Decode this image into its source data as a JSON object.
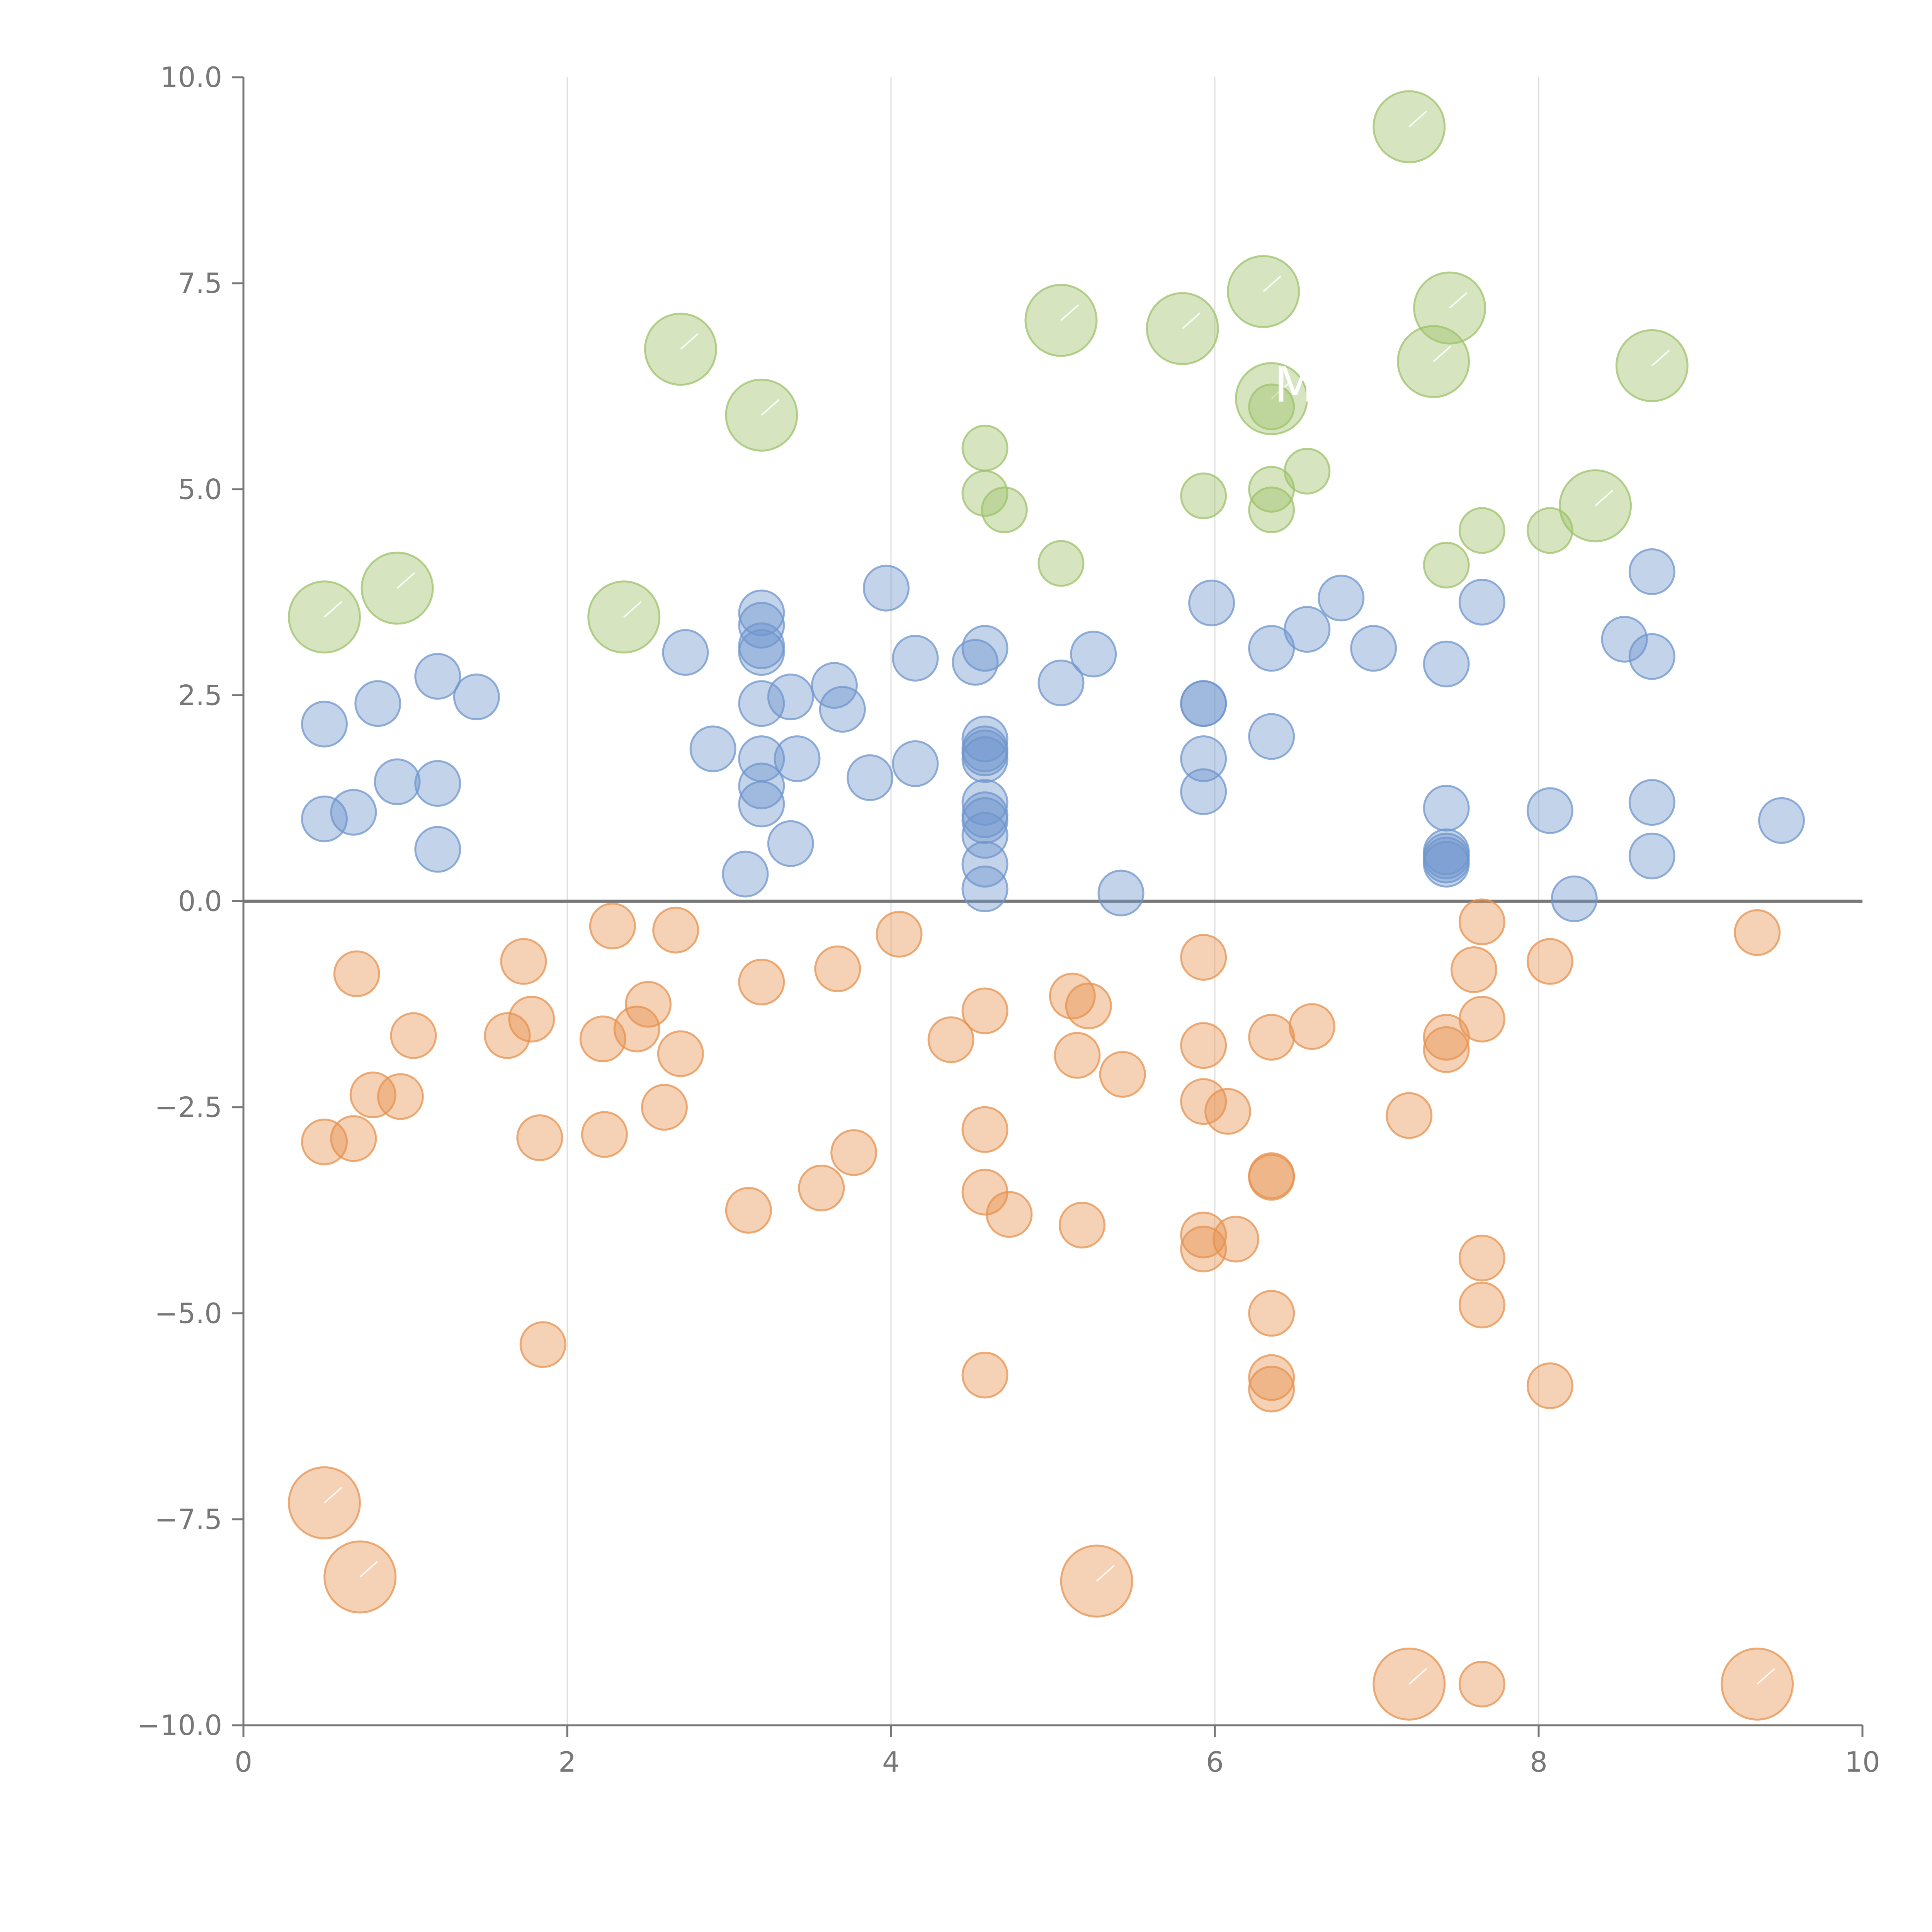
{
  "chart_data": {
    "type": "scatter",
    "title": "",
    "xlabel": "",
    "ylabel": "",
    "xlim": [
      0,
      10
    ],
    "ylim": [
      -10,
      10
    ],
    "x_ticks": [
      0,
      2,
      4,
      6,
      8,
      10
    ],
    "x_tick_labels": [
      "0",
      "2",
      "4",
      "6",
      "8",
      "10"
    ],
    "y_ticks": [
      10,
      7.5,
      5,
      2.5,
      0,
      -2.5,
      -5,
      -7.5,
      -10
    ],
    "y_tick_labels": [
      "10.0",
      "7.5",
      "5.0",
      "2.5",
      "0.0",
      "−2.5",
      "−5.0",
      "−7.5",
      "−10.0"
    ],
    "grid": "vertical",
    "zero_line": true,
    "colors": {
      "green": "#9dc26a",
      "blue": "#6f95cc",
      "orange": "#e6924f",
      "axis": "#777777",
      "grid": "#dddddd",
      "zero": "#777777"
    },
    "series": [
      {
        "name": "green",
        "color": "#9dc26a",
        "points": [
          [
            0.5,
            3.45,
            3
          ],
          [
            0.95,
            3.8,
            3
          ],
          [
            2.35,
            3.45,
            3
          ],
          [
            2.7,
            6.7,
            3
          ],
          [
            3.2,
            5.9,
            3
          ],
          [
            5.05,
            7.05,
            3
          ],
          [
            5.8,
            6.95,
            3
          ],
          [
            6.3,
            7.4,
            3
          ],
          [
            6.35,
            6.1,
            3
          ],
          [
            7.2,
            9.4,
            3
          ],
          [
            7.35,
            6.55,
            3
          ],
          [
            7.45,
            7.2,
            3
          ],
          [
            8.35,
            4.8,
            3
          ],
          [
            8.7,
            6.5,
            3
          ],
          [
            4.58,
            5.5,
            1
          ],
          [
            4.58,
            4.95,
            1
          ],
          [
            4.7,
            4.75,
            1
          ],
          [
            5.05,
            4.1,
            1
          ],
          [
            5.93,
            4.92,
            1
          ],
          [
            6.35,
            6.0,
            1
          ],
          [
            6.35,
            5.0,
            1
          ],
          [
            6.35,
            4.75,
            1
          ],
          [
            6.57,
            5.22,
            1
          ],
          [
            7.43,
            4.08,
            1
          ],
          [
            7.65,
            4.5,
            1
          ],
          [
            8.07,
            4.5,
            1
          ]
        ]
      },
      {
        "name": "blue",
        "color": "#6f95cc",
        "points": [
          [
            0.5,
            2.15,
            1
          ],
          [
            0.83,
            2.4,
            1
          ],
          [
            0.5,
            1.0,
            1
          ],
          [
            0.68,
            1.08,
            1
          ],
          [
            0.95,
            1.45,
            1
          ],
          [
            1.2,
            2.73,
            1
          ],
          [
            1.44,
            2.48,
            1
          ],
          [
            1.2,
            1.43,
            1
          ],
          [
            1.2,
            0.63,
            1
          ],
          [
            2.73,
            3.02,
            1
          ],
          [
            2.9,
            1.85,
            1
          ],
          [
            3.1,
            0.33,
            1
          ],
          [
            3.2,
            3.5,
            1
          ],
          [
            3.2,
            3.35,
            1
          ],
          [
            3.2,
            3.1,
            1
          ],
          [
            3.2,
            3.02,
            1
          ],
          [
            3.2,
            2.4,
            1
          ],
          [
            3.2,
            1.73,
            1
          ],
          [
            3.2,
            1.4,
            1
          ],
          [
            3.2,
            1.18,
            1
          ],
          [
            3.38,
            2.48,
            1
          ],
          [
            3.42,
            1.73,
            1
          ],
          [
            3.38,
            0.7,
            1
          ],
          [
            3.65,
            2.62,
            1
          ],
          [
            3.7,
            2.33,
            1
          ],
          [
            3.87,
            1.5,
            1
          ],
          [
            3.97,
            3.8,
            1
          ],
          [
            4.15,
            2.95,
            1
          ],
          [
            4.15,
            1.67,
            1
          ],
          [
            4.52,
            2.9,
            1
          ],
          [
            4.58,
            3.07,
            1
          ],
          [
            4.58,
            1.97,
            1
          ],
          [
            4.58,
            1.85,
            1
          ],
          [
            4.58,
            1.8,
            1
          ],
          [
            4.58,
            1.72,
            1
          ],
          [
            4.58,
            1.2,
            1
          ],
          [
            4.58,
            1.05,
            1
          ],
          [
            4.58,
            0.98,
            1
          ],
          [
            4.58,
            0.8,
            1
          ],
          [
            4.58,
            0.45,
            1
          ],
          [
            4.58,
            0.15,
            1
          ],
          [
            5.05,
            2.65,
            1
          ],
          [
            5.25,
            3.0,
            1
          ],
          [
            5.42,
            0.1,
            1
          ],
          [
            5.93,
            2.4,
            1
          ],
          [
            5.93,
            2.4,
            1
          ],
          [
            5.93,
            1.73,
            1
          ],
          [
            5.93,
            1.33,
            1
          ],
          [
            5.98,
            3.62,
            1
          ],
          [
            6.35,
            3.07,
            1
          ],
          [
            6.35,
            2.0,
            1
          ],
          [
            6.57,
            3.3,
            1
          ],
          [
            6.78,
            3.68,
            1
          ],
          [
            6.98,
            3.07,
            1
          ],
          [
            7.43,
            2.88,
            1
          ],
          [
            7.43,
            1.13,
            1
          ],
          [
            7.43,
            0.6,
            1
          ],
          [
            7.43,
            0.55,
            1
          ],
          [
            7.43,
            0.5,
            1
          ],
          [
            7.43,
            0.45,
            1
          ],
          [
            7.65,
            3.63,
            1
          ],
          [
            8.07,
            1.1,
            1
          ],
          [
            8.22,
            0.03,
            1
          ],
          [
            8.53,
            3.18,
            1
          ],
          [
            8.7,
            2.97,
            1
          ],
          [
            8.7,
            1.2,
            1
          ],
          [
            8.7,
            0.55,
            1
          ],
          [
            8.7,
            4.0,
            1
          ],
          [
            9.5,
            0.98,
            1
          ]
        ]
      },
      {
        "name": "orange",
        "color": "#e6924f",
        "points": [
          [
            0.7,
            -0.88,
            1
          ],
          [
            0.5,
            -2.92,
            1
          ],
          [
            0.68,
            -2.88,
            1
          ],
          [
            0.8,
            -2.35,
            1
          ],
          [
            0.97,
            -2.37,
            1
          ],
          [
            1.05,
            -1.63,
            1
          ],
          [
            1.63,
            -1.63,
            1
          ],
          [
            1.73,
            -0.73,
            1
          ],
          [
            1.78,
            -1.43,
            1
          ],
          [
            1.83,
            -2.87,
            1
          ],
          [
            1.85,
            -5.38,
            1
          ],
          [
            2.22,
            -1.67,
            1
          ],
          [
            2.23,
            -2.83,
            1
          ],
          [
            2.28,
            -0.3,
            1
          ],
          [
            2.43,
            -1.55,
            1
          ],
          [
            2.5,
            -1.25,
            1
          ],
          [
            2.6,
            -2.5,
            1
          ],
          [
            2.67,
            -0.35,
            1
          ],
          [
            2.7,
            -1.85,
            1
          ],
          [
            3.12,
            -3.75,
            1
          ],
          [
            3.2,
            -0.98,
            1
          ],
          [
            3.57,
            -3.48,
            1
          ],
          [
            3.67,
            -0.82,
            1
          ],
          [
            3.77,
            -3.05,
            1
          ],
          [
            4.05,
            -0.4,
            1
          ],
          [
            4.37,
            -1.68,
            1
          ],
          [
            4.58,
            -1.33,
            1
          ],
          [
            4.58,
            -2.77,
            1
          ],
          [
            4.58,
            -3.53,
            1
          ],
          [
            4.58,
            -5.75,
            1
          ],
          [
            4.73,
            -3.8,
            1
          ],
          [
            5.12,
            -1.15,
            1
          ],
          [
            5.15,
            -1.87,
            1
          ],
          [
            5.18,
            -3.93,
            1
          ],
          [
            5.22,
            -1.27,
            1
          ],
          [
            5.43,
            -2.1,
            1
          ],
          [
            5.93,
            -0.68,
            1
          ],
          [
            5.93,
            -1.75,
            1
          ],
          [
            5.93,
            -2.43,
            1
          ],
          [
            5.93,
            -4.05,
            1
          ],
          [
            5.93,
            -4.22,
            1
          ],
          [
            6.08,
            -2.55,
            1
          ],
          [
            6.13,
            -4.1,
            1
          ],
          [
            6.35,
            -1.65,
            1
          ],
          [
            6.35,
            -3.33,
            1
          ],
          [
            6.35,
            -3.35,
            1
          ],
          [
            6.35,
            -5.0,
            1
          ],
          [
            6.35,
            -5.78,
            1
          ],
          [
            6.35,
            -5.92,
            1
          ],
          [
            6.6,
            -1.52,
            1
          ],
          [
            7.2,
            -2.6,
            1
          ],
          [
            7.43,
            -1.65,
            1
          ],
          [
            7.43,
            -1.8,
            1
          ],
          [
            7.6,
            -0.83,
            1
          ],
          [
            7.65,
            -0.25,
            1
          ],
          [
            7.65,
            -1.43,
            1
          ],
          [
            7.65,
            -4.33,
            1
          ],
          [
            7.65,
            -4.9,
            1
          ],
          [
            7.65,
            -9.5,
            1
          ],
          [
            8.07,
            -0.73,
            1
          ],
          [
            8.07,
            -5.88,
            1
          ],
          [
            9.35,
            -0.38,
            1
          ],
          [
            0.5,
            -7.3,
            3
          ],
          [
            0.72,
            -8.2,
            3
          ],
          [
            5.27,
            -8.25,
            3
          ],
          [
            7.2,
            -9.5,
            3
          ],
          [
            9.35,
            -9.5,
            3
          ]
        ]
      }
    ]
  },
  "overlay_labels": [
    {
      "id": "label-mbr",
      "x": 6.7,
      "y": 6.25,
      "text": "MBR"
    }
  ]
}
